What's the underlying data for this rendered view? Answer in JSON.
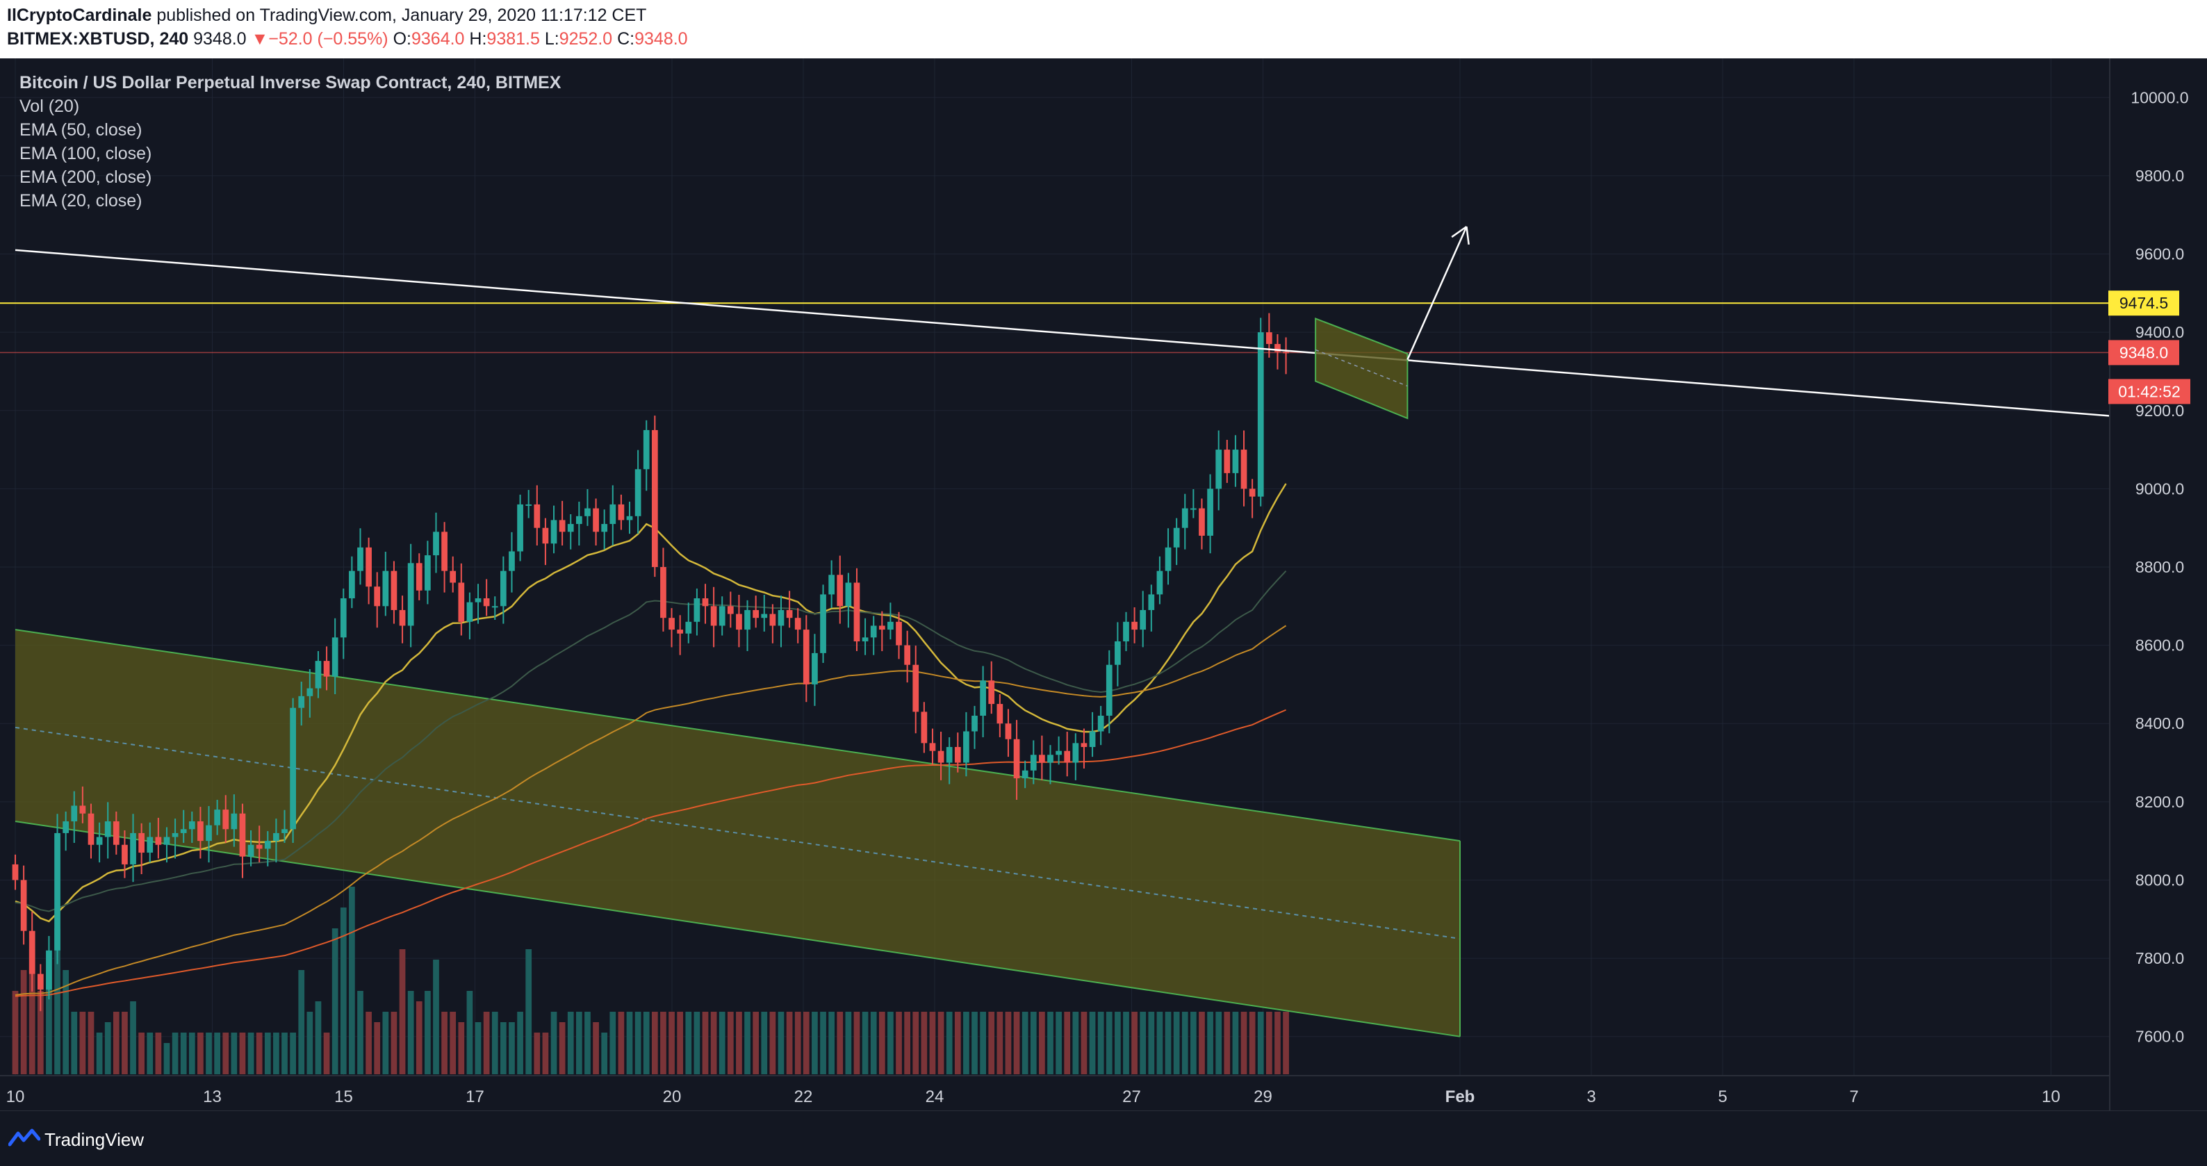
{
  "header": {
    "author": "IlCryptoCardinale",
    "published_text": "published on TradingView.com, January 29, 2020 11:17:12 CET",
    "symbol": "BITMEX:XBTUSD, 240",
    "last": "9348.0",
    "change": "▼−52.0 (−0.55%)",
    "o_label": "O:",
    "o": "9364.0",
    "h_label": "H:",
    "h": "9381.5",
    "l_label": "L:",
    "l": "9252.0",
    "c_label": "C:",
    "c": "9348.0"
  },
  "legend": {
    "title": "Bitcoin / US Dollar Perpetual Inverse Swap Contract, 240, BITMEX",
    "items": [
      "Vol (20)",
      "EMA (50, close)",
      "EMA (100, close)",
      "EMA (200, close)",
      "EMA (20, close)"
    ]
  },
  "badges": {
    "level": "9474.5",
    "price": "9348.0",
    "countdown": "01:42:52"
  },
  "footer": {
    "brand": "TradingView"
  },
  "colors": {
    "background": "#131722",
    "grid": "#1e2433",
    "up": "#26a69a",
    "down": "#ef5350",
    "up_volume": "#1d5f5e",
    "down_volume": "#7b3438",
    "channel_fill": "#5b5a1c",
    "channel_line": "#4caf50",
    "level_line": "#ffeb3b",
    "ema20": "#d4b83a",
    "ema50": "#3d5a4a",
    "ema100": "#c58a26",
    "ema200": "#e05a2a",
    "trendline": "#ffffff"
  },
  "chart_data": {
    "type": "candlestick",
    "timeframe": "240",
    "y_axis": {
      "range": [
        7500,
        10100
      ],
      "ticks": [
        7600,
        7800,
        8000,
        8200,
        8400,
        8600,
        8800,
        9000,
        9200,
        9400,
        9600,
        9800,
        10000
      ],
      "position": "right"
    },
    "x_axis": {
      "ticks": [
        {
          "label": "10",
          "day": 0
        },
        {
          "label": "13",
          "day": 3
        },
        {
          "label": "15",
          "day": 5
        },
        {
          "label": "17",
          "day": 7
        },
        {
          "label": "20",
          "day": 10
        },
        {
          "label": "22",
          "day": 12
        },
        {
          "label": "24",
          "day": 14
        },
        {
          "label": "27",
          "day": 17
        },
        {
          "label": "29",
          "day": 19
        },
        {
          "label": "Feb",
          "day": 22,
          "bold": true
        },
        {
          "label": "3",
          "day": 24
        },
        {
          "label": "5",
          "day": 26
        },
        {
          "label": "7",
          "day": 28
        },
        {
          "label": "10",
          "day": 31
        }
      ]
    },
    "candles_close": [
      8000,
      7870,
      7760,
      7720,
      7820,
      8120,
      8150,
      8190,
      8170,
      8090,
      8110,
      8150,
      8090,
      8040,
      8120,
      8070,
      8110,
      8090,
      8110,
      8120,
      8130,
      8150,
      8100,
      8140,
      8180,
      8130,
      8170,
      8060,
      8090,
      8080,
      8100,
      8120,
      8130,
      8440,
      8470,
      8490,
      8560,
      8520,
      8620,
      8720,
      8790,
      8850,
      8750,
      8700,
      8790,
      8690,
      8650,
      8810,
      8740,
      8830,
      8890,
      8790,
      8760,
      8660,
      8710,
      8720,
      8700,
      8700,
      8790,
      8840,
      8960,
      8960,
      8900,
      8860,
      8920,
      8890,
      8910,
      8930,
      8950,
      8890,
      8910,
      8960,
      8920,
      8930,
      9050,
      9150,
      8800,
      8670,
      8640,
      8630,
      8660,
      8720,
      8700,
      8650,
      8700,
      8680,
      8640,
      8690,
      8670,
      8680,
      8650,
      8690,
      8670,
      8640,
      8500,
      8580,
      8730,
      8780,
      8700,
      8760,
      8610,
      8620,
      8650,
      8640,
      8660,
      8600,
      8550,
      8430,
      8350,
      8330,
      8300,
      8340,
      8300,
      8380,
      8420,
      8510,
      8450,
      8400,
      8360,
      8260,
      8280,
      8320,
      8300,
      8320,
      8330,
      8300,
      8350,
      8340,
      8380,
      8420,
      8550,
      8610,
      8660,
      8640,
      8690,
      8730,
      8790,
      8850,
      8900,
      8950,
      8950,
      8880,
      9000,
      9100,
      9040,
      9100,
      9000,
      8980,
      9400,
      9370,
      9350,
      9348
    ],
    "volume_relative": [
      0.4,
      0.5,
      0.6,
      0.4,
      0.5,
      0.7,
      0.5,
      0.3,
      0.3,
      0.3,
      0.2,
      0.25,
      0.3,
      0.3,
      0.35,
      0.2,
      0.2,
      0.2,
      0.15,
      0.2,
      0.2,
      0.2,
      0.2,
      0.2,
      0.2,
      0.2,
      0.2,
      0.2,
      0.2,
      0.2,
      0.2,
      0.2,
      0.2,
      0.2,
      0.5,
      0.3,
      0.35,
      0.2,
      0.7,
      0.8,
      0.9,
      0.4,
      0.3,
      0.25,
      0.3,
      0.3,
      0.6,
      0.4,
      0.35,
      0.4,
      0.55,
      0.3,
      0.3,
      0.25,
      0.4,
      0.25,
      0.3,
      0.3,
      0.25,
      0.25,
      0.3,
      0.6,
      0.2,
      0.2,
      0.3,
      0.25,
      0.3,
      0.3,
      0.3,
      0.25,
      0.2,
      0.3,
      0.3,
      0.3,
      0.3,
      0.3,
      0.3,
      0.3,
      0.3,
      0.3,
      0.3,
      0.3,
      0.3,
      0.3,
      0.3,
      0.3,
      0.3,
      0.3,
      0.3,
      0.3,
      0.3,
      0.3,
      0.3,
      0.3,
      0.3,
      0.3,
      0.3,
      0.3,
      0.3,
      0.3,
      0.3,
      0.3,
      0.3,
      0.3,
      0.3,
      0.3,
      0.3,
      0.3,
      0.3,
      0.3,
      0.3,
      0.3,
      0.3,
      0.3,
      0.3,
      0.3,
      0.3,
      0.3,
      0.3,
      0.3,
      0.3,
      0.3,
      0.3,
      0.3,
      0.3,
      0.3,
      0.3,
      0.3,
      0.3,
      0.3,
      0.3,
      0.3,
      0.3,
      0.3,
      0.3,
      0.3,
      0.3,
      0.3,
      0.3,
      0.3,
      0.3,
      0.3,
      0.3,
      0.3,
      0.3,
      0.3,
      0.3,
      0.3,
      0.3,
      0.3,
      0.3,
      0.3,
      0.3,
      0.3,
      0.3,
      0.3,
      0.3,
      0.3
    ],
    "horizontal_level": 9474.5,
    "current_price_line": 9348,
    "channel": {
      "upper": [
        {
          "day": 0,
          "price": 8640
        },
        {
          "day": 22,
          "price": 8100
        }
      ],
      "lower": [
        {
          "day": 0,
          "price": 8150
        },
        {
          "day": 22,
          "price": 7600
        }
      ],
      "mid": [
        {
          "day": 0,
          "price": 8390
        },
        {
          "day": 22,
          "price": 7850
        }
      ]
    },
    "trendline": [
      {
        "day": 0,
        "price": 9610
      },
      {
        "day": 32,
        "price": 9185
      }
    ],
    "flag": [
      {
        "day": 19.8,
        "price": 9435
      },
      {
        "day": 21.2,
        "price": 9345
      },
      {
        "day": 21.2,
        "price": 9180
      },
      {
        "day": 19.8,
        "price": 9275
      }
    ],
    "arrow": [
      {
        "day": 21.2,
        "price": 9330
      },
      {
        "day": 22.1,
        "price": 9670
      }
    ]
  }
}
